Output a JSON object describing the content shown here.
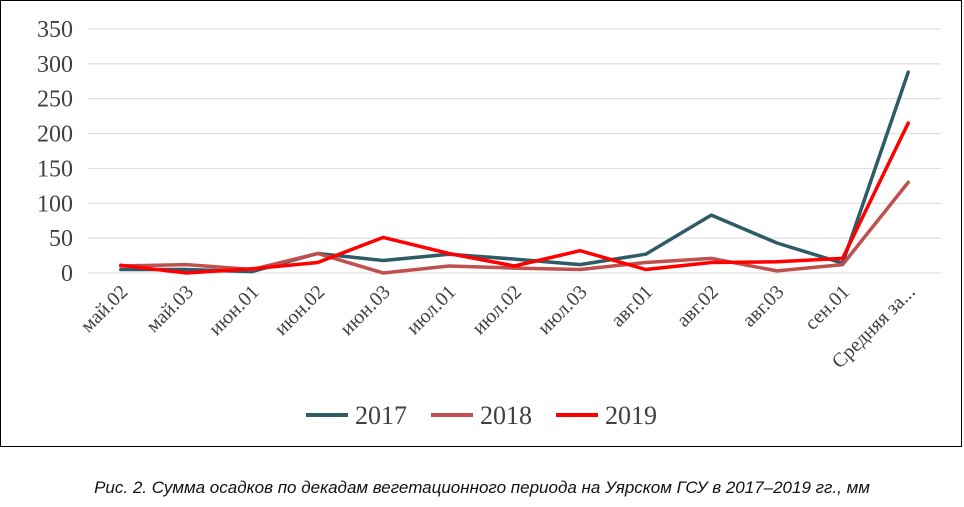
{
  "chart_data": {
    "type": "line",
    "categories": [
      "май.02",
      "май.03",
      "июн.01",
      "июн.02",
      "июн.03",
      "июл.01",
      "июл.02",
      "июл.03",
      "авг.01",
      "авг.02",
      "авг.03",
      "сен.01",
      "Средняя за..."
    ],
    "series": [
      {
        "name": "2017",
        "color": "#2e5b66",
        "values": [
          5,
          5,
          2,
          28,
          18,
          27,
          20,
          12,
          27,
          83,
          43,
          14,
          288
        ]
      },
      {
        "name": "2018",
        "color": "#c0504d",
        "values": [
          10,
          12,
          5,
          28,
          0,
          10,
          7,
          5,
          15,
          21,
          3,
          12,
          130
        ]
      },
      {
        "name": "2019",
        "color": "#ff0000",
        "values": [
          11,
          0,
          6,
          15,
          51,
          28,
          10,
          32,
          5,
          15,
          16,
          21,
          215
        ]
      }
    ],
    "ylim": [
      0,
      350
    ],
    "yticks": [
      0,
      50,
      100,
      150,
      200,
      250,
      300,
      350
    ],
    "grid": true,
    "legend": "bottom"
  },
  "caption": "Рис. 2. Сумма осадков по декадам вегетационного периода на Уярском ГСУ в 2017–2019 гг., мм"
}
